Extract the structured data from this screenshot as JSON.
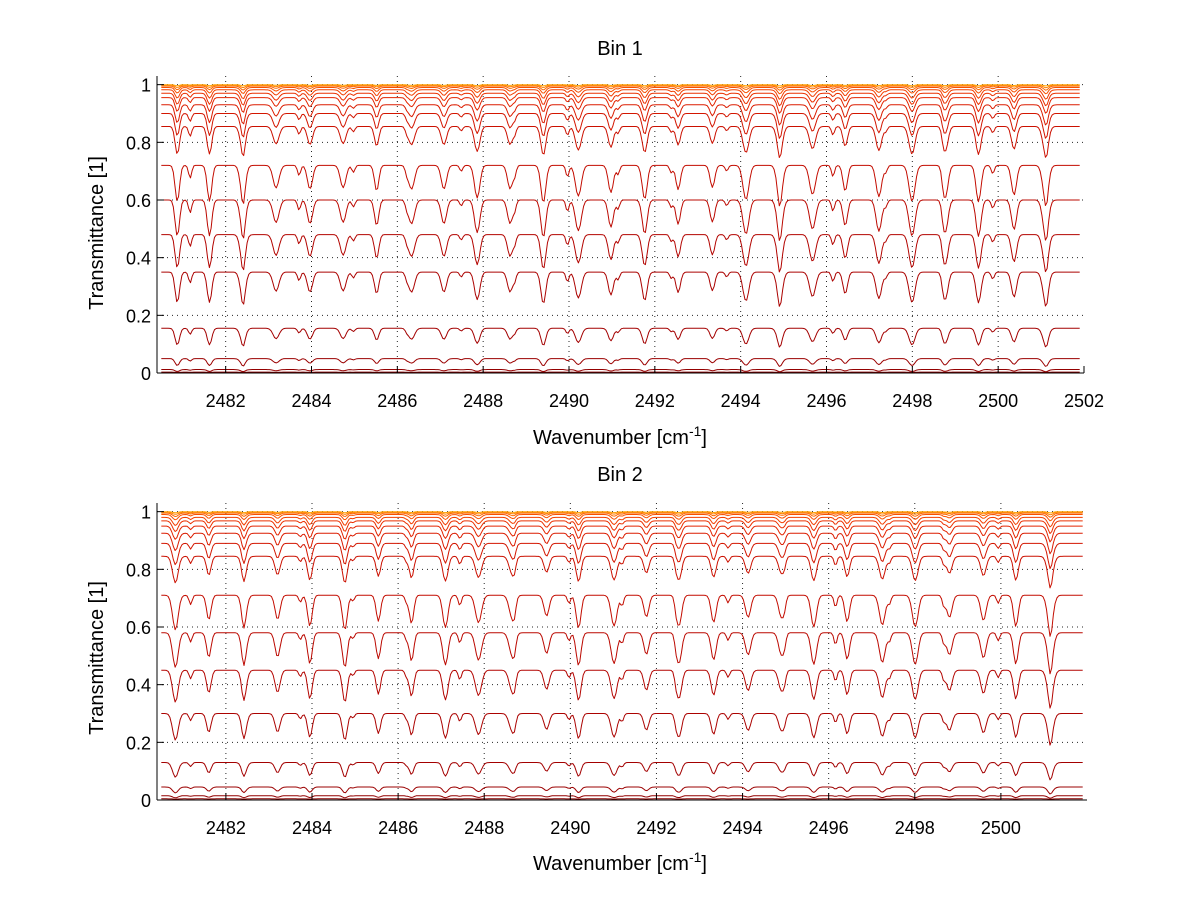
{
  "chart_data": [
    {
      "type": "line",
      "title": "Bin 1",
      "xlabel": "Wavenumber [cm",
      "xlabel_sup": "-1",
      "xlabel_end": "]",
      "ylabel": "Transmittance [1]",
      "xlim": [
        2480.4,
        2502
      ],
      "ylim": [
        0,
        1.03
      ],
      "xticks": [
        2482,
        2484,
        2486,
        2488,
        2490,
        2492,
        2494,
        2496,
        2498,
        2500,
        2502
      ],
      "yticks": [
        0,
        0.2,
        0.4,
        0.6,
        0.8,
        1
      ],
      "grid": true,
      "line_spacing_cm1": 0.78,
      "x_start": 2480.5,
      "x_end": 2501.9,
      "series": [
        {
          "color": "#8b0000",
          "baseline": 0.003,
          "depth": 0.002
        },
        {
          "color": "#930000",
          "baseline": 0.012,
          "depth": 0.007
        },
        {
          "color": "#9b0000",
          "baseline": 0.05,
          "depth": 0.025
        },
        {
          "color": "#a30000",
          "baseline": 0.155,
          "depth": 0.06
        },
        {
          "color": "#ab0200",
          "baseline": 0.35,
          "depth": 0.11
        },
        {
          "color": "#b30400",
          "baseline": 0.48,
          "depth": 0.12
        },
        {
          "color": "#bb0800",
          "baseline": 0.6,
          "depth": 0.13
        },
        {
          "color": "#c30c00",
          "baseline": 0.72,
          "depth": 0.13
        },
        {
          "color": "#cb1000",
          "baseline": 0.855,
          "depth": 0.1
        },
        {
          "color": "#d31600",
          "baseline": 0.9,
          "depth": 0.08
        },
        {
          "color": "#db1c00",
          "baseline": 0.93,
          "depth": 0.065
        },
        {
          "color": "#e32400",
          "baseline": 0.955,
          "depth": 0.05
        },
        {
          "color": "#eb3000",
          "baseline": 0.97,
          "depth": 0.04
        },
        {
          "color": "#f23e00",
          "baseline": 0.982,
          "depth": 0.03
        },
        {
          "color": "#f85000",
          "baseline": 0.99,
          "depth": 0.02
        },
        {
          "color": "#fc6600",
          "baseline": 0.995,
          "depth": 0.013
        },
        {
          "color": "#ff8000",
          "baseline": 0.998,
          "depth": 0.008
        },
        {
          "color": "#ffa000",
          "baseline": 1.0,
          "depth": 0.004
        }
      ]
    },
    {
      "type": "line",
      "title": "Bin 2",
      "xlabel": "Wavenumber [cm",
      "xlabel_sup": "-1",
      "xlabel_end": "]",
      "ylabel": "Transmittance [1]",
      "xlim": [
        2480.4,
        2502
      ],
      "ylim": [
        0,
        1.03
      ],
      "xticks": [
        2482,
        2484,
        2486,
        2488,
        2490,
        2492,
        2494,
        2496,
        2498,
        2500
      ],
      "yticks": [
        0,
        0.2,
        0.4,
        0.6,
        0.8,
        1
      ],
      "grid": true,
      "line_spacing_cm1": 0.78,
      "x_start": 2480.5,
      "x_end": 2501.9,
      "series": [
        {
          "color": "#8b0000",
          "baseline": 0.004,
          "depth": 0.002
        },
        {
          "color": "#930000",
          "baseline": 0.015,
          "depth": 0.008
        },
        {
          "color": "#9b0000",
          "baseline": 0.045,
          "depth": 0.022
        },
        {
          "color": "#a30000",
          "baseline": 0.13,
          "depth": 0.055
        },
        {
          "color": "#ab0200",
          "baseline": 0.3,
          "depth": 0.1
        },
        {
          "color": "#b30400",
          "baseline": 0.45,
          "depth": 0.12
        },
        {
          "color": "#bb0800",
          "baseline": 0.58,
          "depth": 0.13
        },
        {
          "color": "#c30c00",
          "baseline": 0.71,
          "depth": 0.13
        },
        {
          "color": "#cb1000",
          "baseline": 0.845,
          "depth": 0.1
        },
        {
          "color": "#d31600",
          "baseline": 0.89,
          "depth": 0.08
        },
        {
          "color": "#db1c00",
          "baseline": 0.925,
          "depth": 0.065
        },
        {
          "color": "#e32400",
          "baseline": 0.95,
          "depth": 0.05
        },
        {
          "color": "#eb3000",
          "baseline": 0.968,
          "depth": 0.04
        },
        {
          "color": "#f23e00",
          "baseline": 0.98,
          "depth": 0.03
        },
        {
          "color": "#f85000",
          "baseline": 0.99,
          "depth": 0.02
        },
        {
          "color": "#fc6600",
          "baseline": 0.995,
          "depth": 0.013
        },
        {
          "color": "#ff8000",
          "baseline": 0.998,
          "depth": 0.008
        },
        {
          "color": "#ffa000",
          "baseline": 1.0,
          "depth": 0.004
        }
      ]
    }
  ]
}
